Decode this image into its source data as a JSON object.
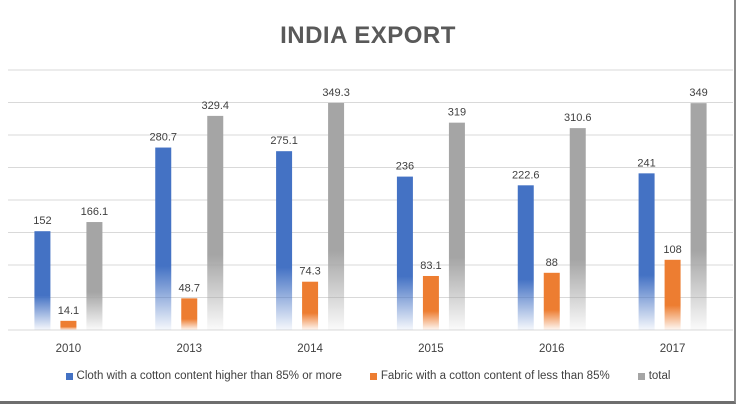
{
  "chart_data": {
    "type": "bar",
    "title": "INDIA EXPORT",
    "categories": [
      "2010",
      "2013",
      "2014",
      "2015",
      "2016",
      "2017"
    ],
    "series": [
      {
        "name": "Cloth with a cotton content higher than 85% or more",
        "color": "#4472c4",
        "values": [
          152,
          280.7,
          275.1,
          236,
          222.6,
          241
        ]
      },
      {
        "name": "Fabric with a cotton content of less than 85%",
        "color": "#ed7d31",
        "values": [
          14.1,
          48.7,
          74.3,
          83.1,
          88,
          108
        ]
      },
      {
        "name": "total",
        "color": "#a5a5a5",
        "values": [
          166.1,
          329.4,
          349.3,
          319,
          310.6,
          349
        ]
      }
    ],
    "data_labels": [
      [
        "152",
        "280.7",
        "275.1",
        "236",
        "222.6",
        "241"
      ],
      [
        "14.1",
        "48.7",
        "74.3",
        "83.1",
        "88",
        "108"
      ],
      [
        "166.1",
        "329.4",
        "349.3",
        "319",
        "310.6",
        "349"
      ]
    ],
    "ylim": [
      0,
      400
    ],
    "grid": true,
    "legend_position": "bottom",
    "bar_fill": "gradient fading to white at base"
  }
}
